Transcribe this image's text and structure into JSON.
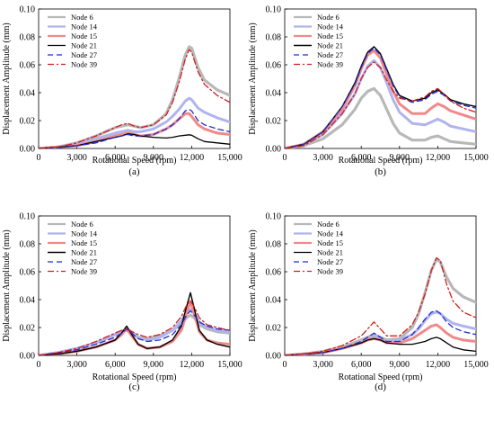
{
  "chart_data": [
    {
      "type": "line",
      "panel_label": "(a)",
      "xlabel": "Rotational Speed (rpm)",
      "ylabel": "Displacement Amplitude (mm)",
      "xlim": [
        0,
        15000
      ],
      "ylim": [
        0,
        0.1
      ],
      "xticks": [
        "0",
        "3,000",
        "6,000",
        "9,000",
        "12,000",
        "15,000"
      ],
      "yticks": [
        "0.00",
        "0.02",
        "0.04",
        "0.06",
        "0.08",
        "0.10"
      ],
      "grid": false,
      "legend_position": "top-left",
      "x": [
        0,
        1500,
        3000,
        4500,
        6000,
        6500,
        7000,
        7500,
        8000,
        9000,
        10000,
        10500,
        11000,
        11500,
        11800,
        12000,
        12500,
        13000,
        14000,
        15000
      ],
      "series": [
        {
          "name": "Node 6",
          "color": "#b8b8b8",
          "dash": "none",
          "width": 3.2,
          "values": [
            0.0,
            0.001,
            0.004,
            0.009,
            0.015,
            0.016,
            0.017,
            0.016,
            0.015,
            0.017,
            0.025,
            0.035,
            0.05,
            0.067,
            0.073,
            0.072,
            0.058,
            0.049,
            0.042,
            0.038
          ]
        },
        {
          "name": "Node 14",
          "color": "#b0b4ee",
          "dash": "none",
          "width": 3.0,
          "values": [
            0.0,
            0.001,
            0.003,
            0.007,
            0.011,
            0.012,
            0.013,
            0.012,
            0.012,
            0.014,
            0.019,
            0.023,
            0.028,
            0.034,
            0.036,
            0.035,
            0.029,
            0.026,
            0.022,
            0.019
          ]
        },
        {
          "name": "Node 15",
          "color": "#f08a8a",
          "dash": "none",
          "width": 3.0,
          "values": [
            0.0,
            0.001,
            0.002,
            0.005,
            0.009,
            0.01,
            0.011,
            0.01,
            0.009,
            0.01,
            0.014,
            0.017,
            0.021,
            0.025,
            0.025,
            0.023,
            0.017,
            0.014,
            0.011,
            0.01
          ]
        },
        {
          "name": "Node 21",
          "color": "#000000",
          "dash": "none",
          "width": 1.3,
          "values": [
            0.0,
            0.001,
            0.002,
            0.005,
            0.008,
            0.009,
            0.0105,
            0.01,
            0.009,
            0.008,
            0.0075,
            0.008,
            0.009,
            0.0095,
            0.0098,
            0.0095,
            0.007,
            0.005,
            0.004,
            0.003
          ]
        },
        {
          "name": "Node 27",
          "color": "#1f2fcf",
          "dash": "6,4",
          "width": 1.3,
          "values": [
            0.0,
            0.0005,
            0.002,
            0.004,
            0.008,
            0.009,
            0.01,
            0.009,
            0.009,
            0.01,
            0.014,
            0.017,
            0.021,
            0.027,
            0.028,
            0.027,
            0.02,
            0.017,
            0.014,
            0.012
          ]
        },
        {
          "name": "Node 39",
          "color": "#d11f1f",
          "dash": "7,3,2,3",
          "width": 1.3,
          "values": [
            0.0,
            0.001,
            0.004,
            0.009,
            0.015,
            0.017,
            0.018,
            0.016,
            0.015,
            0.017,
            0.024,
            0.033,
            0.047,
            0.064,
            0.071,
            0.069,
            0.055,
            0.046,
            0.038,
            0.033
          ]
        }
      ]
    },
    {
      "type": "line",
      "panel_label": "(b)",
      "xlabel": "Rotational Speed (rpm)",
      "ylabel": "Displacement Amplitude (mm)",
      "xlim": [
        0,
        15000
      ],
      "ylim": [
        0,
        0.1
      ],
      "xticks": [
        "0",
        "3,000",
        "6,000",
        "9,000",
        "12,000",
        "15,000"
      ],
      "yticks": [
        "0.00",
        "0.02",
        "0.04",
        "0.06",
        "0.08",
        "0.10"
      ],
      "grid": false,
      "legend_position": "top-left",
      "x": [
        0,
        1500,
        3000,
        4500,
        5500,
        6000,
        6500,
        7000,
        7500,
        8000,
        8500,
        9000,
        10000,
        11000,
        11500,
        12000,
        12500,
        13000,
        14000,
        15000
      ],
      "series": [
        {
          "name": "Node 6",
          "color": "#b8b8b8",
          "dash": "none",
          "width": 3.2,
          "values": [
            0.0,
            0.002,
            0.007,
            0.017,
            0.028,
            0.036,
            0.041,
            0.043,
            0.038,
            0.028,
            0.018,
            0.011,
            0.006,
            0.006,
            0.008,
            0.009,
            0.007,
            0.005,
            0.004,
            0.003
          ]
        },
        {
          "name": "Node 14",
          "color": "#b0b4ee",
          "dash": "none",
          "width": 3.0,
          "values": [
            0.0,
            0.003,
            0.01,
            0.025,
            0.039,
            0.05,
            0.059,
            0.063,
            0.058,
            0.047,
            0.035,
            0.026,
            0.018,
            0.017,
            0.019,
            0.021,
            0.019,
            0.016,
            0.014,
            0.012
          ]
        },
        {
          "name": "Node 15",
          "color": "#f08a8a",
          "dash": "none",
          "width": 3.0,
          "values": [
            0.0,
            0.003,
            0.012,
            0.028,
            0.045,
            0.057,
            0.067,
            0.07,
            0.065,
            0.053,
            0.041,
            0.032,
            0.025,
            0.025,
            0.029,
            0.032,
            0.03,
            0.027,
            0.024,
            0.021
          ]
        },
        {
          "name": "Node 21",
          "color": "#000000",
          "dash": "none",
          "width": 1.4,
          "values": [
            0.0,
            0.003,
            0.012,
            0.03,
            0.047,
            0.059,
            0.069,
            0.073,
            0.068,
            0.057,
            0.046,
            0.038,
            0.034,
            0.036,
            0.04,
            0.042,
            0.039,
            0.035,
            0.032,
            0.03
          ]
        },
        {
          "name": "Node 27",
          "color": "#1f2fcf",
          "dash": "6,4",
          "width": 1.3,
          "values": [
            0.0,
            0.003,
            0.012,
            0.03,
            0.046,
            0.058,
            0.068,
            0.072,
            0.067,
            0.056,
            0.045,
            0.037,
            0.033,
            0.035,
            0.039,
            0.041,
            0.038,
            0.034,
            0.031,
            0.029
          ]
        },
        {
          "name": "Node 39",
          "color": "#d11f1f",
          "dash": "7,3,2,3",
          "width": 1.3,
          "values": [
            0.0,
            0.002,
            0.01,
            0.025,
            0.039,
            0.05,
            0.058,
            0.062,
            0.058,
            0.049,
            0.041,
            0.036,
            0.034,
            0.037,
            0.041,
            0.043,
            0.039,
            0.034,
            0.029,
            0.026
          ]
        }
      ]
    },
    {
      "type": "line",
      "panel_label": "(c)",
      "xlabel": "Rotational Speed (rpm)",
      "ylabel": "Displacement Amplitude (mm)",
      "xlim": [
        0,
        15000
      ],
      "ylim": [
        0,
        0.1
      ],
      "xticks": [
        "0",
        "3,000",
        "6,000",
        "9,000",
        "12,000",
        "15,000"
      ],
      "yticks": [
        "0.00",
        "0.02",
        "0.04",
        "0.06",
        "0.08",
        "0.10"
      ],
      "grid": false,
      "legend_position": "top-left",
      "x": [
        0,
        1500,
        3000,
        4500,
        6000,
        6500,
        6900,
        7300,
        7800,
        8500,
        9500,
        10500,
        11200,
        11600,
        11900,
        12200,
        12600,
        13200,
        14000,
        15000
      ],
      "series": [
        {
          "name": "Node 6",
          "color": "#b8b8b8",
          "dash": "none",
          "width": 3.2,
          "values": [
            0.0,
            0.002,
            0.005,
            0.009,
            0.015,
            0.017,
            0.018,
            0.016,
            0.013,
            0.012,
            0.014,
            0.018,
            0.023,
            0.027,
            0.029,
            0.027,
            0.022,
            0.019,
            0.017,
            0.016
          ]
        },
        {
          "name": "Node 14",
          "color": "#b0b4ee",
          "dash": "none",
          "width": 3.0,
          "values": [
            0.0,
            0.002,
            0.005,
            0.009,
            0.015,
            0.017,
            0.019,
            0.017,
            0.013,
            0.011,
            0.013,
            0.018,
            0.025,
            0.031,
            0.033,
            0.03,
            0.024,
            0.02,
            0.018,
            0.017
          ]
        },
        {
          "name": "Node 15",
          "color": "#f08a8a",
          "dash": "none",
          "width": 3.0,
          "values": [
            0.0,
            0.001,
            0.003,
            0.006,
            0.011,
            0.015,
            0.019,
            0.014,
            0.008,
            0.005,
            0.006,
            0.01,
            0.018,
            0.03,
            0.039,
            0.03,
            0.017,
            0.011,
            0.009,
            0.008
          ]
        },
        {
          "name": "Node 21",
          "color": "#000000",
          "dash": "none",
          "width": 1.4,
          "values": [
            0.0,
            0.001,
            0.003,
            0.006,
            0.011,
            0.016,
            0.021,
            0.015,
            0.008,
            0.005,
            0.006,
            0.011,
            0.021,
            0.035,
            0.045,
            0.034,
            0.018,
            0.011,
            0.008,
            0.006
          ]
        },
        {
          "name": "Node 27",
          "color": "#1f2fcf",
          "dash": "6,4",
          "width": 1.3,
          "values": [
            0.0,
            0.002,
            0.004,
            0.008,
            0.013,
            0.016,
            0.019,
            0.016,
            0.012,
            0.01,
            0.011,
            0.015,
            0.022,
            0.029,
            0.032,
            0.029,
            0.024,
            0.021,
            0.019,
            0.018
          ]
        },
        {
          "name": "Node 39",
          "color": "#d11f1f",
          "dash": "7,3,2,3",
          "width": 1.3,
          "values": [
            0.0,
            0.002,
            0.005,
            0.01,
            0.016,
            0.018,
            0.019,
            0.017,
            0.015,
            0.013,
            0.015,
            0.02,
            0.028,
            0.036,
            0.039,
            0.035,
            0.027,
            0.022,
            0.02,
            0.018
          ]
        }
      ]
    },
    {
      "type": "line",
      "panel_label": "(d)",
      "xlabel": "Rotational Speed (rpm)",
      "ylabel": "Displacement Amplitude (mm)",
      "xlim": [
        0,
        15000
      ],
      "ylim": [
        0,
        0.1
      ],
      "xticks": [
        "0",
        "3,000",
        "6,000",
        "9,000",
        "12,000",
        "15,000"
      ],
      "yticks": [
        "0.00",
        "0.02",
        "0.04",
        "0.06",
        "0.08",
        "0.10"
      ],
      "grid": false,
      "legend_position": "top-left",
      "x": [
        0,
        1500,
        3000,
        4500,
        6000,
        6500,
        7000,
        7500,
        8000,
        9000,
        10000,
        10500,
        11000,
        11500,
        11900,
        12200,
        12700,
        13200,
        14000,
        15000
      ],
      "series": [
        {
          "name": "Node 6",
          "color": "#b8b8b8",
          "dash": "none",
          "width": 3.2,
          "values": [
            0.0,
            0.001,
            0.003,
            0.006,
            0.011,
            0.013,
            0.015,
            0.013,
            0.011,
            0.012,
            0.02,
            0.03,
            0.045,
            0.061,
            0.069,
            0.067,
            0.056,
            0.048,
            0.042,
            0.038
          ]
        },
        {
          "name": "Node 14",
          "color": "#b0b4ee",
          "dash": "none",
          "width": 3.0,
          "values": [
            0.0,
            0.001,
            0.002,
            0.005,
            0.009,
            0.011,
            0.013,
            0.012,
            0.01,
            0.011,
            0.015,
            0.019,
            0.025,
            0.03,
            0.031,
            0.03,
            0.026,
            0.023,
            0.021,
            0.019
          ]
        },
        {
          "name": "Node 15",
          "color": "#f08a8a",
          "dash": "none",
          "width": 3.0,
          "values": [
            0.0,
            0.001,
            0.002,
            0.005,
            0.009,
            0.011,
            0.012,
            0.011,
            0.009,
            0.009,
            0.012,
            0.015,
            0.018,
            0.021,
            0.022,
            0.02,
            0.016,
            0.013,
            0.011,
            0.01
          ]
        },
        {
          "name": "Node 21",
          "color": "#000000",
          "dash": "none",
          "width": 1.3,
          "values": [
            0.0,
            0.001,
            0.002,
            0.005,
            0.009,
            0.011,
            0.012,
            0.011,
            0.009,
            0.008,
            0.008,
            0.009,
            0.01,
            0.012,
            0.013,
            0.012,
            0.009,
            0.006,
            0.004,
            0.003
          ]
        },
        {
          "name": "Node 27",
          "color": "#1f2fcf",
          "dash": "6,4",
          "width": 1.3,
          "values": [
            0.0,
            0.001,
            0.002,
            0.005,
            0.01,
            0.013,
            0.016,
            0.013,
            0.01,
            0.01,
            0.015,
            0.02,
            0.026,
            0.031,
            0.032,
            0.03,
            0.024,
            0.02,
            0.017,
            0.015
          ]
        },
        {
          "name": "Node 39",
          "color": "#d11f1f",
          "dash": "7,3,2,3",
          "width": 1.3,
          "values": [
            0.0,
            0.001,
            0.003,
            0.007,
            0.014,
            0.019,
            0.024,
            0.019,
            0.014,
            0.014,
            0.022,
            0.031,
            0.044,
            0.061,
            0.07,
            0.068,
            0.051,
            0.039,
            0.031,
            0.027
          ]
        }
      ]
    }
  ]
}
